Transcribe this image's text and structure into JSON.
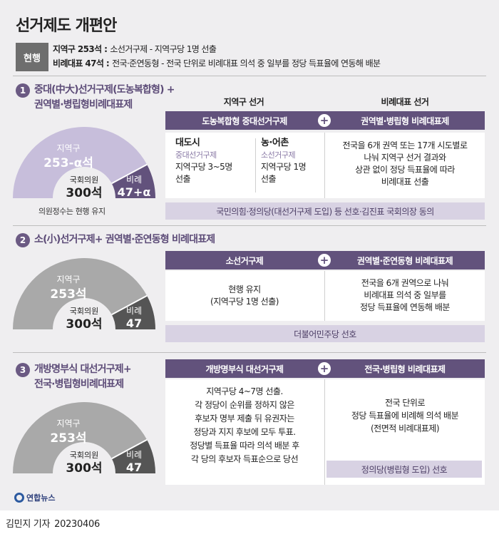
{
  "title": "선거제도 개편안",
  "current": {
    "tag": "현행",
    "line1_bold": "지역구 253석 :",
    "line1_text": "소선거구제 - 지역구당 1명 선출",
    "line2_bold": "비례대표 47석 :",
    "line2_text": "전국·준연동형 - 전국 단위로 비례대표 의석 중 일부를 정당 득표율에 연동해 배분"
  },
  "options": [
    {
      "num": "1",
      "title_line1": "중대(中大)선거구제(도농복합형) +",
      "title_line2": "권역별·병립형비례대표제",
      "gauge": {
        "district_label": "지역구",
        "district_value": "253-α석",
        "total_label": "국회의원",
        "total_value": "300석",
        "pr_label": "비례",
        "pr_value": "47+α",
        "district_share": 0.8433,
        "color_main": "#c7bedb",
        "color_pr": "#62527c",
        "text_main": "#ffffff"
      },
      "gauge_note": "의원정수는 현행 유지",
      "col_left_label": "지역구 선거",
      "col_right_label": "비례대표 선거",
      "bar_left": "도농복합형 중대선거구제",
      "bar_right": "권역별·병립형 비례대표제",
      "city": {
        "head": "대도시",
        "sub": "중대선거구제",
        "text1": "지역구당 3~5명",
        "text2": "선출"
      },
      "rural": {
        "head": "농·어촌",
        "sub": "소선거구제",
        "text1": "지역구당 1명",
        "text2": "선출"
      },
      "right_lines": [
        "전국을 6개 권역 또는 17개 시도별로",
        "나눠 지역구 선거 결과와",
        "상관 없이 정당 득표율에 따라",
        "비례대표 선출"
      ],
      "support": "국민의힘·정의당(대선거구제 도입) 등 선호·김진표 국회의장 동의"
    },
    {
      "num": "2",
      "title_line1": "소(小)선거구제+ 권역별·준연동형 비례대표제",
      "gauge": {
        "district_label": "지역구",
        "district_value": "253석",
        "total_label": "국회의원",
        "total_value": "300석",
        "pr_label": "비례",
        "pr_value": "47",
        "district_share": 0.8433,
        "color_main": "#a9a9a9",
        "color_pr": "#555555",
        "text_main": "#ffffff"
      },
      "bar_left": "소선거구제",
      "bar_right": "권역별·준연동형 비례대표제",
      "left_lines": [
        "현행 유지",
        "(지역구당 1명 선출)"
      ],
      "right_lines": [
        "전국을 6개 권역으로 나눠",
        "비례대표 의석 중 일부를",
        "정당 득표율에 연동해 배분"
      ],
      "support": "더불어민주당 선호"
    },
    {
      "num": "3",
      "title_line1": "개방명부식 대선거구제+",
      "title_line2": "전국·병립형비례대표제",
      "gauge": {
        "district_label": "지역구",
        "district_value": "253석",
        "total_label": "국회의원",
        "total_value": "300석",
        "pr_label": "비례",
        "pr_value": "47",
        "district_share": 0.8433,
        "color_main": "#a9a9a9",
        "color_pr": "#555555",
        "text_main": "#ffffff"
      },
      "bar_left": "개방명부식 대선거구제",
      "bar_right": "전국·병립형 비례대표제",
      "left_lines": [
        "지역구당 4~7명 선출.",
        "각 정당이 순위를 정하지 않은",
        "후보자 명부 제출 뒤 유권자는",
        "정당과 지지 후보에 모두 투표.",
        "정당별 득표율 따라 의석 배분 후",
        "각 당의 후보자 득표순으로 당선"
      ],
      "right_lines": [
        "전국 단위로",
        "정당 득표율에 비례해 의석 배분",
        "(전면적 비례대표제)"
      ],
      "support": "정의당(병립형 도입) 선호"
    }
  ],
  "plus_symbol": "+",
  "logo": "연합뉴스",
  "credit": {
    "name": "김민지 기자",
    "date": "20230406"
  }
}
